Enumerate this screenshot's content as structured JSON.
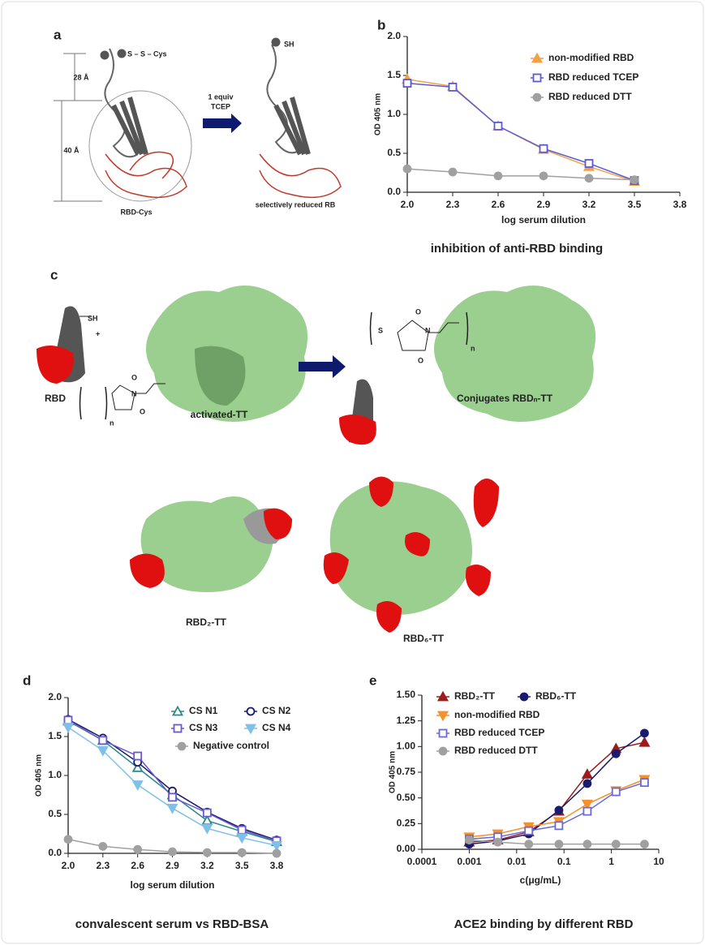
{
  "figure": {
    "panel_a": "a",
    "panel_b": "b",
    "panel_c": "c",
    "panel_d": "d",
    "panel_e": "e",
    "disulfide": "S – S – Cys",
    "dist_28": "28 Å",
    "dist_40": "40 Å",
    "equiv": "1 equiv",
    "tcep": "TCEP",
    "rbd_cys": "RBD-Cys",
    "sh_a": "SH",
    "selectively_reduced": "selectively reduced RB",
    "sh_c": "SH",
    "plus": "+",
    "rbd": "RBD",
    "n1": "n",
    "o1": "O",
    "o2": "O",
    "n_atom1": "N",
    "activated_tt": "activated-TT",
    "s_atom": "S",
    "n2": "n",
    "o3": "O",
    "o4": "O",
    "n_atom2": "N",
    "conjugates": "Conjugates RBDₙ-TT",
    "rbd2_tt": "RBD₂-TT",
    "rbd6_tt": "RBD₆-TT"
  },
  "chart_data": [
    {
      "type": "line",
      "caption": "inhibition of anti-RBD binding",
      "x_label": "log serum dilution",
      "y_label": "OD 405 nm",
      "x": [
        2.0,
        2.3,
        2.6,
        2.9,
        3.2,
        3.5
      ],
      "xlim": [
        2.0,
        3.8
      ],
      "xticks": [
        {
          "value": 2.0,
          "label": "2.0"
        },
        2.3,
        2.6,
        2.9,
        3.2,
        3.5,
        3.8
      ],
      "ylim": [
        0,
        2.0
      ],
      "yticks": [
        {
          "value": 0,
          "label": "0.0"
        },
        0.5,
        {
          "value": 1,
          "label": "1.0"
        },
        1.5,
        {
          "value": 2,
          "label": "2.0"
        }
      ],
      "series": [
        {
          "name": "non-modified RBD",
          "color": "#f5a142",
          "marker": "triangle",
          "open": false,
          "values": [
            1.45,
            1.36,
            0.85,
            0.55,
            0.33,
            0.14
          ]
        },
        {
          "name": "RBD reduced TCEP",
          "color": "#5b5bd6",
          "marker": "square",
          "open": true,
          "values": [
            1.4,
            1.35,
            0.85,
            0.56,
            0.37,
            0.15
          ]
        },
        {
          "name": "RBD reduced DTT",
          "color": "#a0a0a0",
          "marker": "circle",
          "open": false,
          "values": [
            0.3,
            0.26,
            0.21,
            0.21,
            0.18,
            0.16
          ]
        }
      ]
    },
    {
      "type": "line",
      "caption": "convalescent serum vs RBD-BSA",
      "x_label": "log serum dilution",
      "y_label": "OD 405 nm",
      "x": [
        2.0,
        2.3,
        2.6,
        2.9,
        3.2,
        3.5,
        3.8
      ],
      "xlim": [
        2.0,
        3.8
      ],
      "xticks": [
        {
          "value": 2.0,
          "label": "2.0"
        },
        2.3,
        2.6,
        2.9,
        3.2,
        3.5,
        3.8
      ],
      "ylim": [
        0,
        2.0
      ],
      "yticks": [
        {
          "value": 0,
          "label": "0.0"
        },
        0.5,
        {
          "value": 1,
          "label": "1.0"
        },
        1.5,
        {
          "value": 2,
          "label": "2.0"
        }
      ],
      "series": [
        {
          "name": "CS N1",
          "color": "#2a8a8a",
          "marker": "triangle",
          "open": true,
          "values": [
            1.7,
            1.45,
            1.1,
            0.75,
            0.42,
            0.28,
            0.15
          ]
        },
        {
          "name": "CS N2",
          "color": "#1a1a6e",
          "marker": "circle",
          "open": true,
          "values": [
            1.72,
            1.48,
            1.17,
            0.8,
            0.53,
            0.32,
            0.17
          ]
        },
        {
          "name": "CS N3",
          "color": "#6a5acd",
          "marker": "square",
          "open": true,
          "values": [
            1.71,
            1.45,
            1.25,
            0.72,
            0.52,
            0.3,
            0.16
          ]
        },
        {
          "name": "CS N4",
          "color": "#7ec0e8",
          "marker": "triangle-down",
          "open": false,
          "values": [
            1.62,
            1.32,
            0.88,
            0.58,
            0.32,
            0.2,
            0.1
          ]
        },
        {
          "name": "Negative control",
          "color": "#a0a0a0",
          "marker": "circle",
          "open": false,
          "values": [
            0.18,
            0.09,
            0.05,
            0.02,
            0.01,
            0.01,
            0.0
          ]
        }
      ]
    },
    {
      "type": "line",
      "caption": "ACE2 binding by different RBD",
      "x_label": "c(μg/mL)",
      "y_label": "OD 405 nm",
      "xlog": true,
      "x": [
        0.001,
        0.004,
        0.018,
        0.078,
        0.31,
        1.25,
        5
      ],
      "xlim": [
        0.0001,
        10
      ],
      "xticks": [
        0.0001,
        0.001,
        0.01,
        0.1,
        1,
        10
      ],
      "ylim": [
        0,
        1.5
      ],
      "yticks": [
        {
          "value": 0,
          "label": "0.00"
        },
        0.25,
        {
          "value": 0.5,
          "label": "0.50"
        },
        0.75,
        {
          "value": 1,
          "label": "1.00"
        },
        1.25,
        {
          "value": 1.5,
          "label": "1.50"
        }
      ],
      "series": [
        {
          "name": "RBD₂-TT",
          "color": "#9b1c1c",
          "marker": "triangle",
          "open": false,
          "values": [
            0.07,
            0.09,
            0.17,
            0.37,
            0.73,
            0.98,
            1.04
          ]
        },
        {
          "name": "RBD₆-TT",
          "color": "#1a1a6e",
          "marker": "circle",
          "open": false,
          "values": [
            0.05,
            0.08,
            0.15,
            0.38,
            0.64,
            0.93,
            1.13
          ]
        },
        {
          "name": "non-modified RBD",
          "color": "#f5902a",
          "marker": "triangle-down",
          "open": false,
          "values": [
            0.12,
            0.15,
            0.22,
            0.27,
            0.44,
            0.57,
            0.68
          ]
        },
        {
          "name": "RBD reduced TCEP",
          "color": "#6a6ad6",
          "marker": "square",
          "open": true,
          "values": [
            0.1,
            0.12,
            0.18,
            0.23,
            0.37,
            0.56,
            0.65
          ]
        },
        {
          "name": "RBD reduced DTT",
          "color": "#a0a0a0",
          "marker": "circle",
          "open": false,
          "values": [
            0.09,
            0.07,
            0.05,
            0.05,
            0.05,
            0.05,
            0.05
          ]
        }
      ]
    }
  ]
}
